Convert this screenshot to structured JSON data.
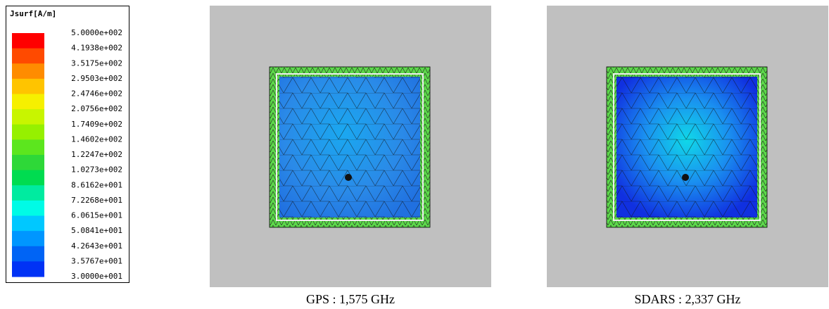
{
  "legend": {
    "title": "Jsurf[A/m]",
    "labels": [
      "5.0000e+002",
      "4.1938e+002",
      "3.5175e+002",
      "2.9503e+002",
      "2.4746e+002",
      "2.0756e+002",
      "1.7409e+002",
      "1.4602e+002",
      "1.2247e+002",
      "1.0273e+002",
      "8.6162e+001",
      "7.2268e+001",
      "6.0615e+001",
      "5.0841e+001",
      "4.2643e+001",
      "3.5767e+001",
      "3.0000e+001"
    ],
    "colors": [
      "#ff0000",
      "#ff4a00",
      "#ff8c00",
      "#ffc400",
      "#f6f000",
      "#c8f500",
      "#96f000",
      "#5ce61e",
      "#2ed838",
      "#00dc50",
      "#00eba0",
      "#00fbe6",
      "#00c8ff",
      "#0096ff",
      "#0064f5",
      "#0032f5"
    ]
  },
  "panels": [
    {
      "caption": "GPS : 1,575 GHz"
    },
    {
      "caption": "SDARS : 2,337 GHz"
    }
  ]
}
